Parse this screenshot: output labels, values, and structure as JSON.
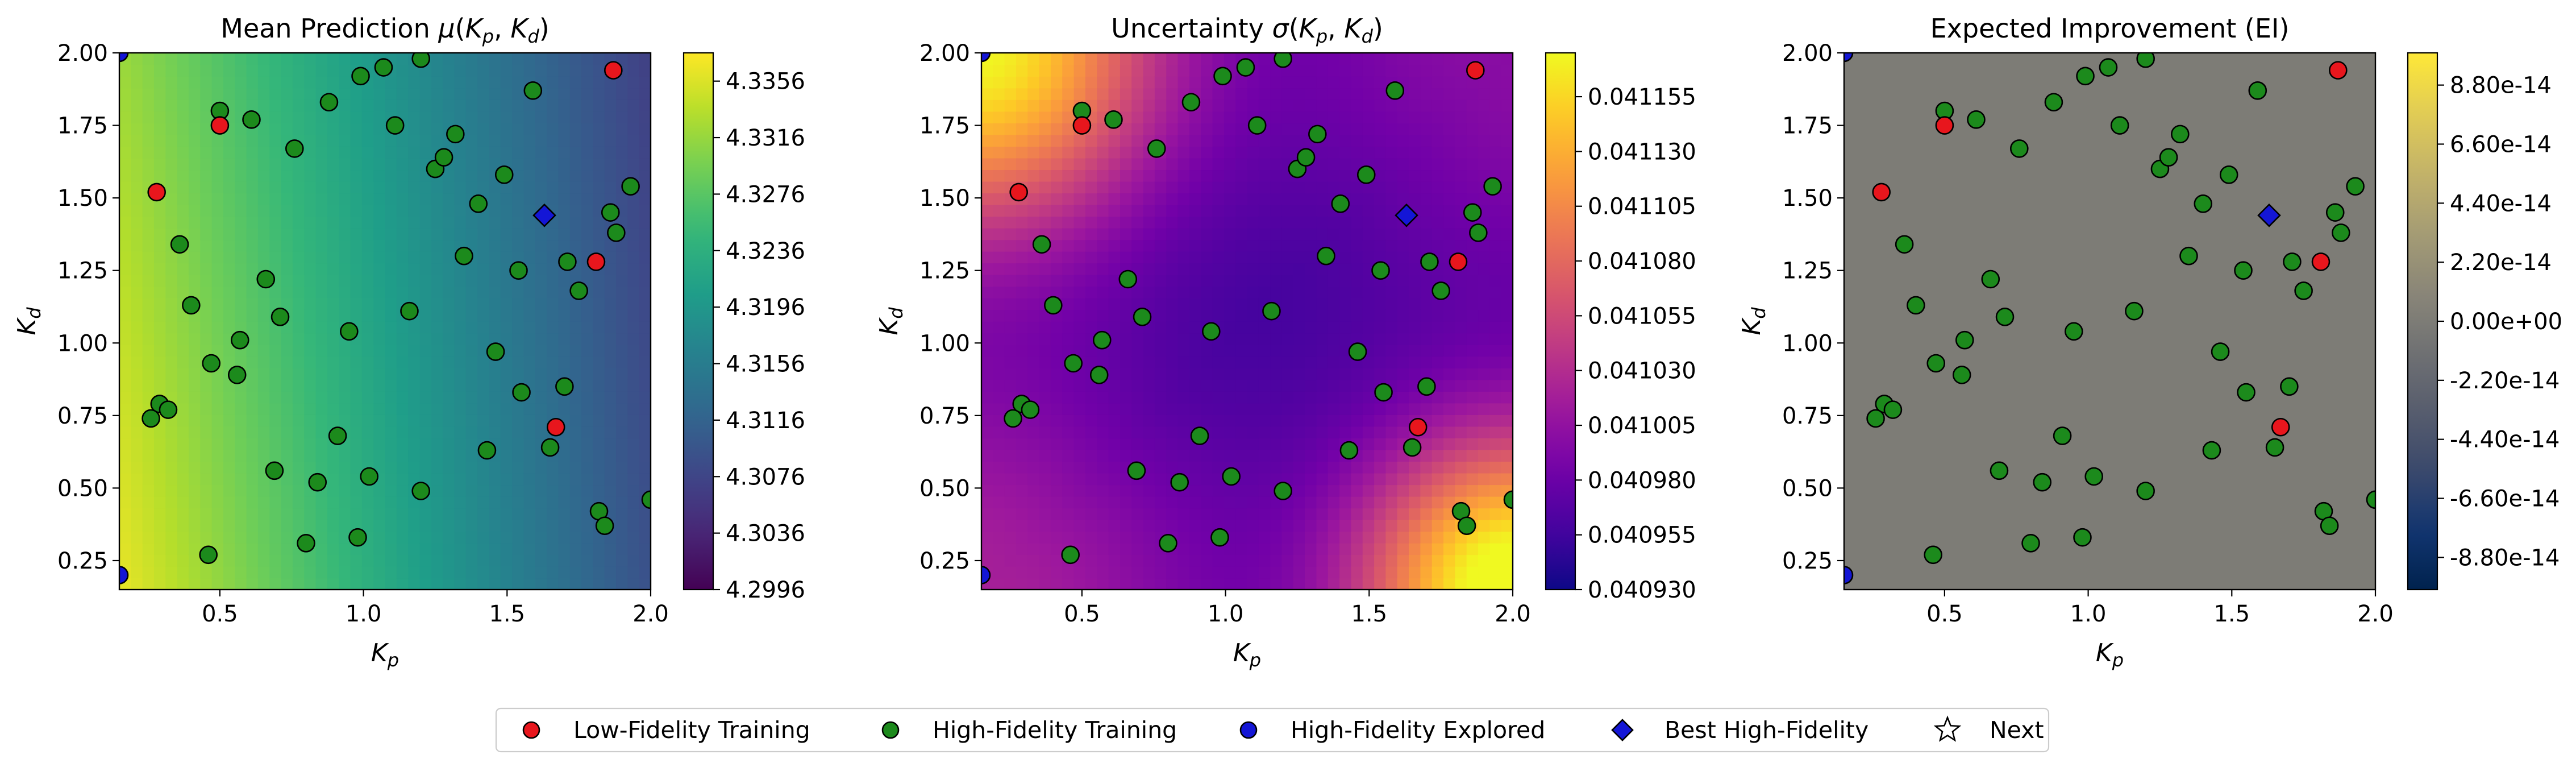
{
  "chart_data": [
    {
      "type": "heatmap",
      "title": "Mean Prediction μ(Kp, Kd)",
      "colormap": "viridis",
      "xlabel": "Kp",
      "ylabel": "Kd",
      "xlim": [
        0.15,
        2.0
      ],
      "ylim": [
        0.15,
        2.0
      ],
      "x_ticks": [
        "0.5",
        "1.0",
        "1.5",
        "2.0"
      ],
      "y_ticks": [
        "0.25",
        "0.50",
        "0.75",
        "1.00",
        "1.25",
        "1.50",
        "1.75",
        "2.00"
      ],
      "colorbar_range": [
        4.2996,
        4.3376
      ],
      "colorbar_ticks": [
        "4.2996",
        "4.3036",
        "4.3076",
        "4.3116",
        "4.3156",
        "4.3196",
        "4.3236",
        "4.3276",
        "4.3316",
        "4.3356"
      ]
    },
    {
      "type": "heatmap",
      "title": "Uncertainty σ(Kp, Kd)",
      "colormap": "plasma",
      "xlabel": "Kp",
      "ylabel": "Kd",
      "xlim": [
        0.15,
        2.0
      ],
      "ylim": [
        0.15,
        2.0
      ],
      "x_ticks": [
        "0.5",
        "1.0",
        "1.5",
        "2.0"
      ],
      "y_ticks": [
        "0.25",
        "0.50",
        "0.75",
        "1.00",
        "1.25",
        "1.50",
        "1.75",
        "2.00"
      ],
      "colorbar_range": [
        0.04093,
        0.041175
      ],
      "colorbar_ticks": [
        "0.040930",
        "0.040955",
        "0.040980",
        "0.041005",
        "0.041030",
        "0.041055",
        "0.041080",
        "0.041105",
        "0.041130",
        "0.041155"
      ]
    },
    {
      "type": "heatmap",
      "title": "Expected Improvement (EI)",
      "colormap": "cividis",
      "xlabel": "Kp",
      "ylabel": "Kd",
      "xlim": [
        0.15,
        2.0
      ],
      "ylim": [
        0.15,
        2.0
      ],
      "x_ticks": [
        "0.5",
        "1.0",
        "1.5",
        "2.0"
      ],
      "y_ticks": [
        "0.25",
        "0.50",
        "0.75",
        "1.00",
        "1.25",
        "1.50",
        "1.75",
        "2.00"
      ],
      "colorbar_range": [
        -1e-13,
        1e-13
      ],
      "colorbar_ticks": [
        "-8.80e-14",
        "-6.60e-14",
        "-4.40e-14",
        "-2.20e-14",
        "0.00e+00",
        "2.20e-14",
        "4.40e-14",
        "6.60e-14",
        "8.80e-14"
      ],
      "field_value": 0.0
    }
  ],
  "markers": {
    "low_fidelity_training": [
      [
        0.28,
        1.52
      ],
      [
        0.5,
        1.75
      ],
      [
        1.87,
        1.94
      ],
      [
        1.81,
        1.28
      ],
      [
        1.67,
        0.71
      ]
    ],
    "high_fidelity_training": [
      [
        0.5,
        1.8
      ],
      [
        0.61,
        1.77
      ],
      [
        0.76,
        1.67
      ],
      [
        0.88,
        1.83
      ],
      [
        0.99,
        1.92
      ],
      [
        1.07,
        1.95
      ],
      [
        1.2,
        1.98
      ],
      [
        1.11,
        1.75
      ],
      [
        1.25,
        1.6
      ],
      [
        1.28,
        1.64
      ],
      [
        1.32,
        1.72
      ],
      [
        1.49,
        1.58
      ],
      [
        1.59,
        1.87
      ],
      [
        1.4,
        1.48
      ],
      [
        1.35,
        1.3
      ],
      [
        1.54,
        1.25
      ],
      [
        1.71,
        1.28
      ],
      [
        1.75,
        1.18
      ],
      [
        1.86,
        1.45
      ],
      [
        1.88,
        1.38
      ],
      [
        1.93,
        1.54
      ],
      [
        0.36,
        1.34
      ],
      [
        0.4,
        1.13
      ],
      [
        0.66,
        1.22
      ],
      [
        0.71,
        1.09
      ],
      [
        0.95,
        1.04
      ],
      [
        1.16,
        1.11
      ],
      [
        0.57,
        1.01
      ],
      [
        0.47,
        0.93
      ],
      [
        0.56,
        0.89
      ],
      [
        1.46,
        0.97
      ],
      [
        1.55,
        0.83
      ],
      [
        1.7,
        0.85
      ],
      [
        0.29,
        0.79
      ],
      [
        0.32,
        0.77
      ],
      [
        0.26,
        0.74
      ],
      [
        1.65,
        0.64
      ],
      [
        1.43,
        0.63
      ],
      [
        0.91,
        0.68
      ],
      [
        0.69,
        0.56
      ],
      [
        1.02,
        0.54
      ],
      [
        0.84,
        0.52
      ],
      [
        1.2,
        0.49
      ],
      [
        1.82,
        0.42
      ],
      [
        1.84,
        0.37
      ],
      [
        2.0,
        0.46
      ],
      [
        0.8,
        0.31
      ],
      [
        0.98,
        0.33
      ],
      [
        0.46,
        0.27
      ]
    ],
    "high_fidelity_explored": [
      [
        0.15,
        2.0
      ],
      [
        0.15,
        0.2
      ]
    ],
    "best_high_fidelity": [
      [
        1.63,
        1.44
      ]
    ],
    "next": []
  },
  "legend": {
    "entries": [
      {
        "label": "Low-Fidelity Training",
        "marker": "circle",
        "color": "#e8161d"
      },
      {
        "label": "High-Fidelity Training",
        "marker": "circle",
        "color": "#1c8a1c"
      },
      {
        "label": "High-Fidelity Explored",
        "marker": "circle",
        "color": "#1416d6"
      },
      {
        "label": "Best High-Fidelity",
        "marker": "diamond",
        "color": "#1416d6"
      },
      {
        "label": "Next",
        "marker": "star",
        "color": "#ffffff"
      }
    ]
  }
}
